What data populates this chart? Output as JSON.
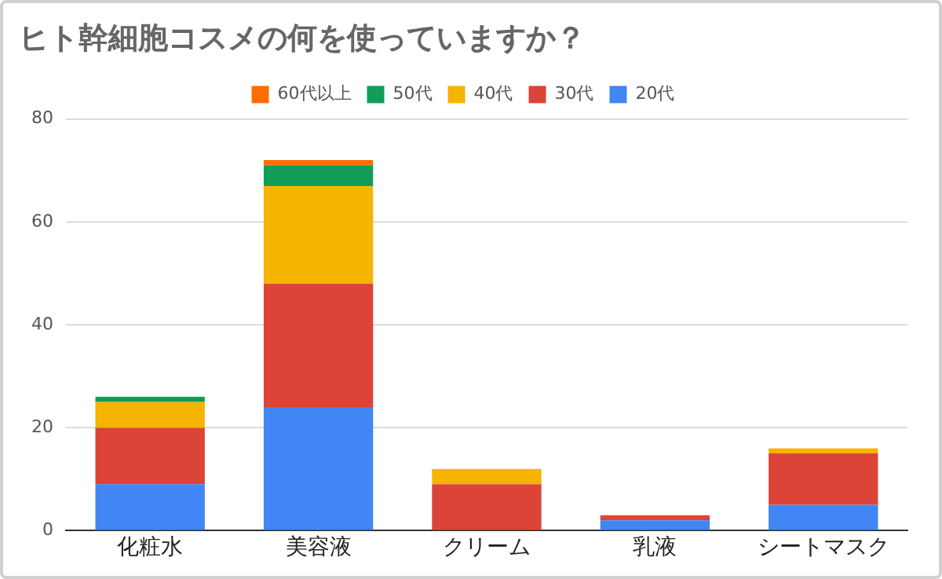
{
  "chart_data": {
    "type": "bar",
    "title": "ヒト幹細胞コスメの何を使っていますか？",
    "categories": [
      "化粧水",
      "美容液",
      "クリーム",
      "乳液",
      "シートマスク"
    ],
    "stacked": true,
    "legend": "top",
    "grid": "y",
    "ylim": [
      0,
      80
    ],
    "yticks": [
      0,
      20,
      40,
      60,
      80
    ],
    "series": [
      {
        "name": "20代",
        "color": "#4285f4",
        "values": [
          9,
          24,
          0,
          2,
          5
        ]
      },
      {
        "name": "30代",
        "color": "#db4437",
        "values": [
          11,
          24,
          9,
          1,
          10
        ]
      },
      {
        "name": "40代",
        "color": "#f4b400",
        "values": [
          5,
          19,
          3,
          0,
          1
        ]
      },
      {
        "name": "50代",
        "color": "#0f9d58",
        "values": [
          1,
          4,
          0,
          0,
          0
        ]
      },
      {
        "name": "60代以上",
        "color": "#ff6d01",
        "values": [
          0,
          1,
          0,
          0,
          0
        ]
      }
    ]
  }
}
